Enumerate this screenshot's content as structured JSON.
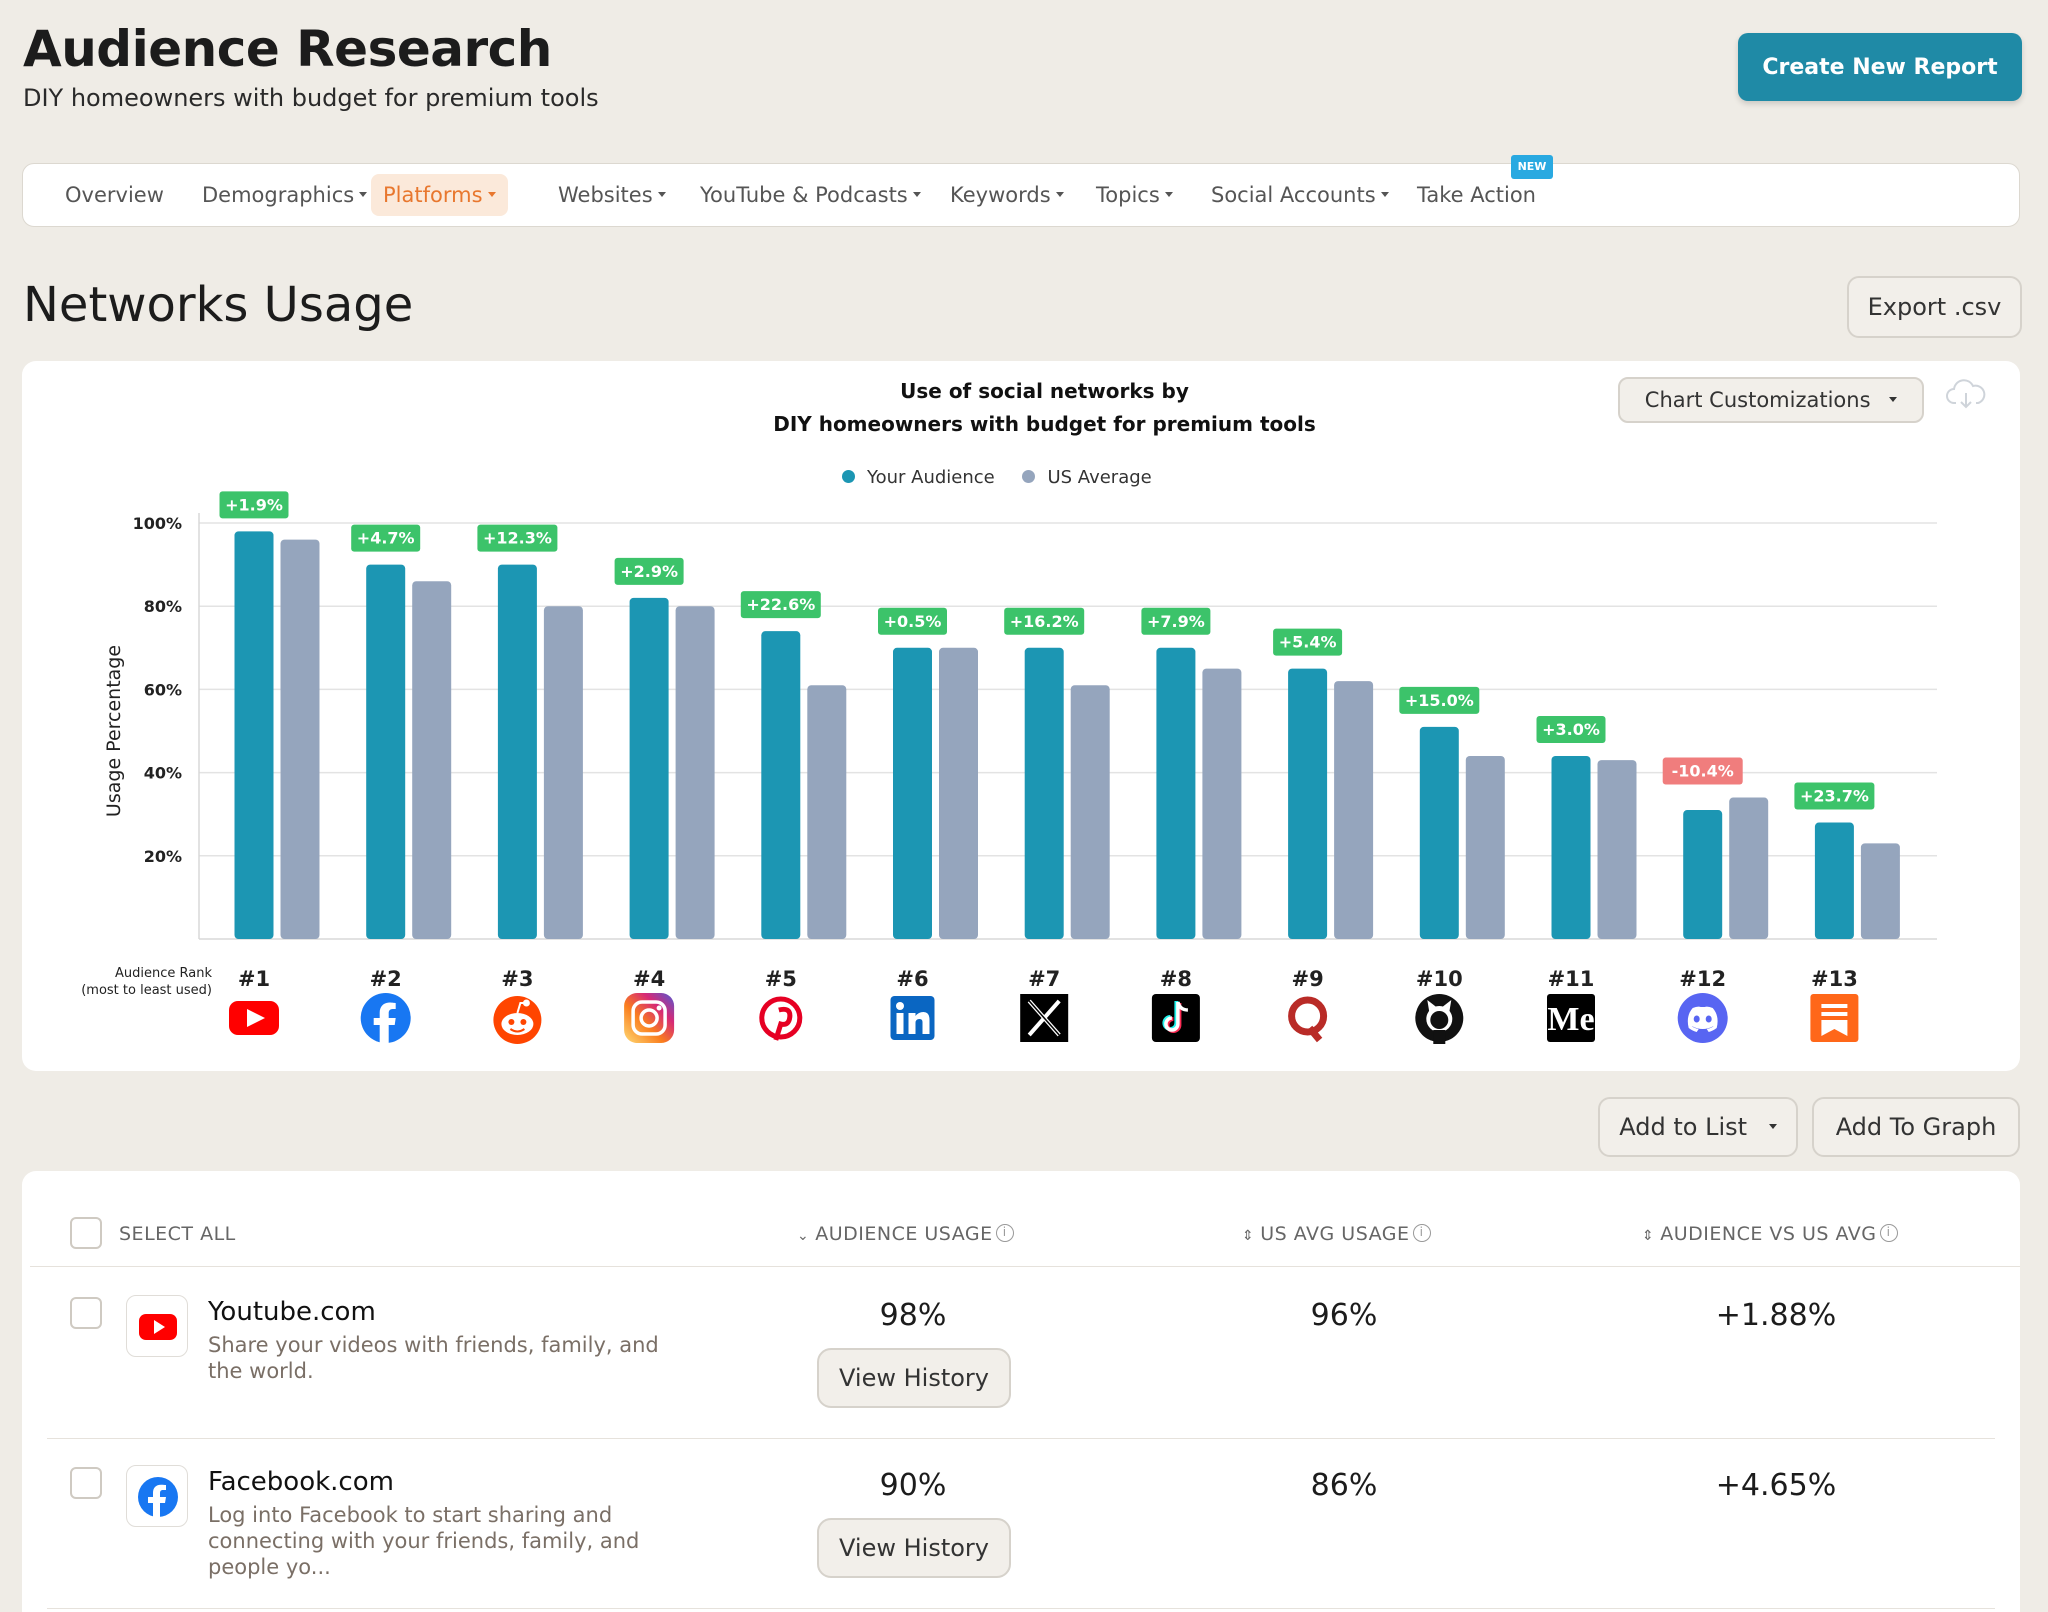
{
  "header": {
    "title": "Audience Research",
    "subtitle": "DIY homeowners with budget for premium tools",
    "create_button": "Create New Report"
  },
  "nav": {
    "items": [
      {
        "label": "Overview",
        "dropdown": false
      },
      {
        "label": "Demographics",
        "dropdown": true
      },
      {
        "label": "Platforms",
        "dropdown": true,
        "active": true
      },
      {
        "label": "Websites",
        "dropdown": true
      },
      {
        "label": "YouTube & Podcasts",
        "dropdown": true
      },
      {
        "label": "Keywords",
        "dropdown": true
      },
      {
        "label": "Topics",
        "dropdown": true
      },
      {
        "label": "Social Accounts",
        "dropdown": true
      },
      {
        "label": "Take Action",
        "dropdown": false
      }
    ],
    "new_badge": "NEW",
    "active_color": "#e8772e"
  },
  "section": {
    "title": "Networks Usage",
    "export_button": "Export .csv"
  },
  "chart_panel": {
    "title_line1": "Use of social networks by",
    "title_line2": "DIY homeowners with budget for premium tools",
    "customize_button": "Chart Customizations",
    "download_icon": "cloud-download-icon",
    "rank_caption_line1": "Audience Rank",
    "rank_caption_line2": "(most to least used)"
  },
  "chart_data": {
    "type": "bar",
    "title": "Use of social networks by DIY homeowners with budget for premium tools",
    "ylabel": "Usage Percentage",
    "ylim": [
      0,
      100
    ],
    "yticks": [
      "20%",
      "40%",
      "60%",
      "80%",
      "100%"
    ],
    "grid": true,
    "legend_position": "top-center",
    "categories": [
      "#1",
      "#2",
      "#3",
      "#4",
      "#5",
      "#6",
      "#7",
      "#8",
      "#9",
      "#10",
      "#11",
      "#12",
      "#13"
    ],
    "platform_icons": [
      "youtube-icon",
      "facebook-icon",
      "reddit-icon",
      "instagram-icon",
      "pinterest-icon",
      "linkedin-icon",
      "x-icon",
      "tiktok-icon",
      "quora-icon",
      "github-icon",
      "medium-icon",
      "discord-icon",
      "substack-icon"
    ],
    "series": [
      {
        "name": "Your Audience",
        "color": "#1c96b3",
        "values": [
          98,
          90,
          90,
          82,
          74,
          70,
          70,
          70,
          65,
          51,
          44,
          31,
          28
        ]
      },
      {
        "name": "US Average",
        "color": "#95a5bd",
        "values": [
          96,
          86,
          80,
          80,
          61,
          70,
          61,
          65,
          62,
          44,
          43,
          34,
          23
        ]
      }
    ],
    "diff_labels": [
      "+1.9%",
      "+4.7%",
      "+12.3%",
      "+2.9%",
      "+22.6%",
      "+0.5%",
      "+16.2%",
      "+7.9%",
      "+5.4%",
      "+15.0%",
      "+3.0%",
      "-10.4%",
      "+23.7%"
    ],
    "positive_color": "#3cc36a",
    "negative_color": "#f07d7d"
  },
  "actions": {
    "add_to_list": "Add to List",
    "add_to_graph": "Add To Graph"
  },
  "table": {
    "headers": {
      "select_all": "SELECT ALL",
      "audience_usage": "AUDIENCE USAGE",
      "us_avg_usage": "US AVG USAGE",
      "audience_vs_us": "AUDIENCE VS US AVG"
    },
    "rows": [
      {
        "name": "Youtube.com",
        "icon": "youtube-icon",
        "description": "Share your videos with friends, family, and the world.",
        "audience_usage": "98%",
        "us_avg_usage": "96%",
        "audience_vs_us": "+1.88%",
        "history_button": "View History"
      },
      {
        "name": "Facebook.com",
        "icon": "facebook-icon",
        "description": "Log into Facebook to start sharing and connecting with your friends, family, and people yo...",
        "audience_usage": "90%",
        "us_avg_usage": "86%",
        "audience_vs_us": "+4.65%",
        "history_button": "View History"
      }
    ]
  }
}
